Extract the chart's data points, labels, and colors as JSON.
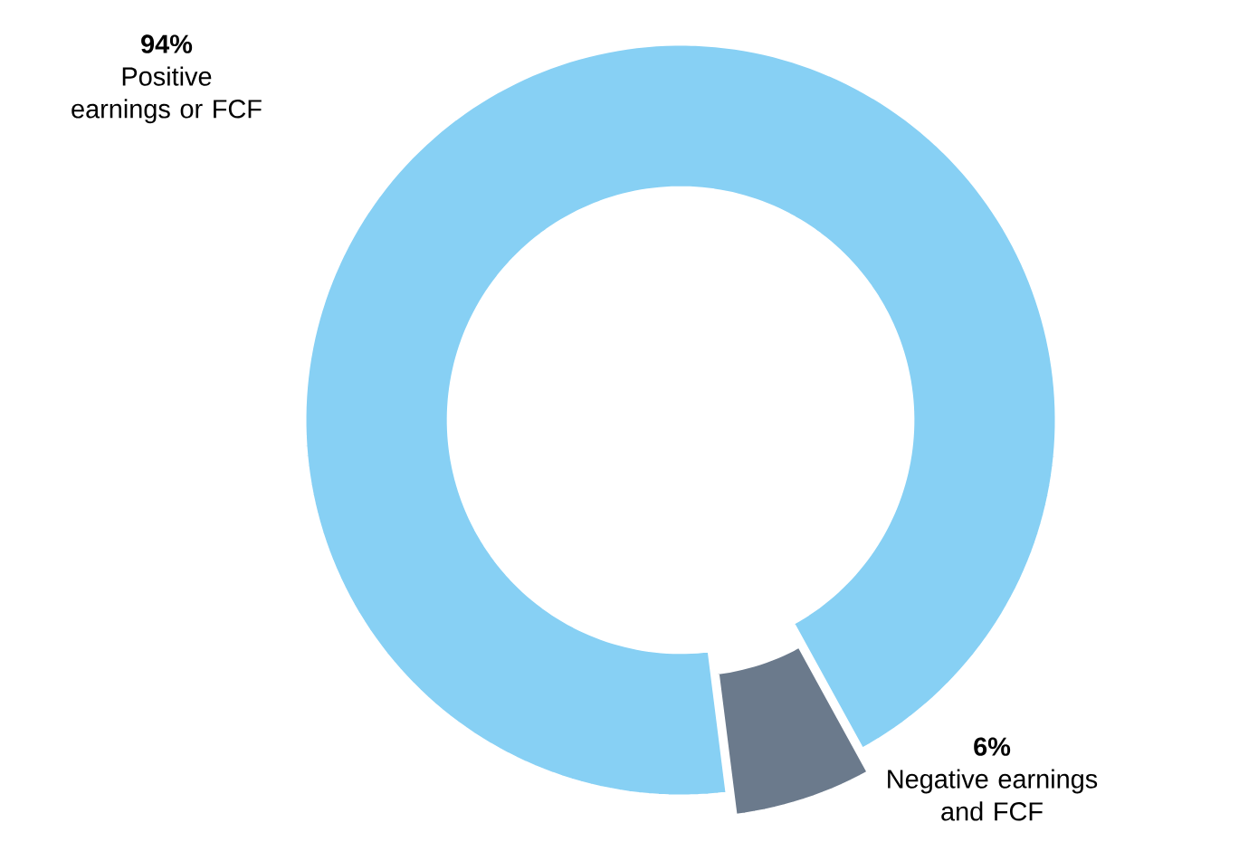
{
  "chart_data": {
    "type": "donut",
    "categories": [
      "Positive earnings or FCF",
      "Negative earnings and FCF"
    ],
    "values": [
      94,
      6
    ],
    "colors": [
      "#87d0f4",
      "#6b7a8c"
    ],
    "value_labels": [
      "94%",
      "6%"
    ],
    "legend": false
  }
}
